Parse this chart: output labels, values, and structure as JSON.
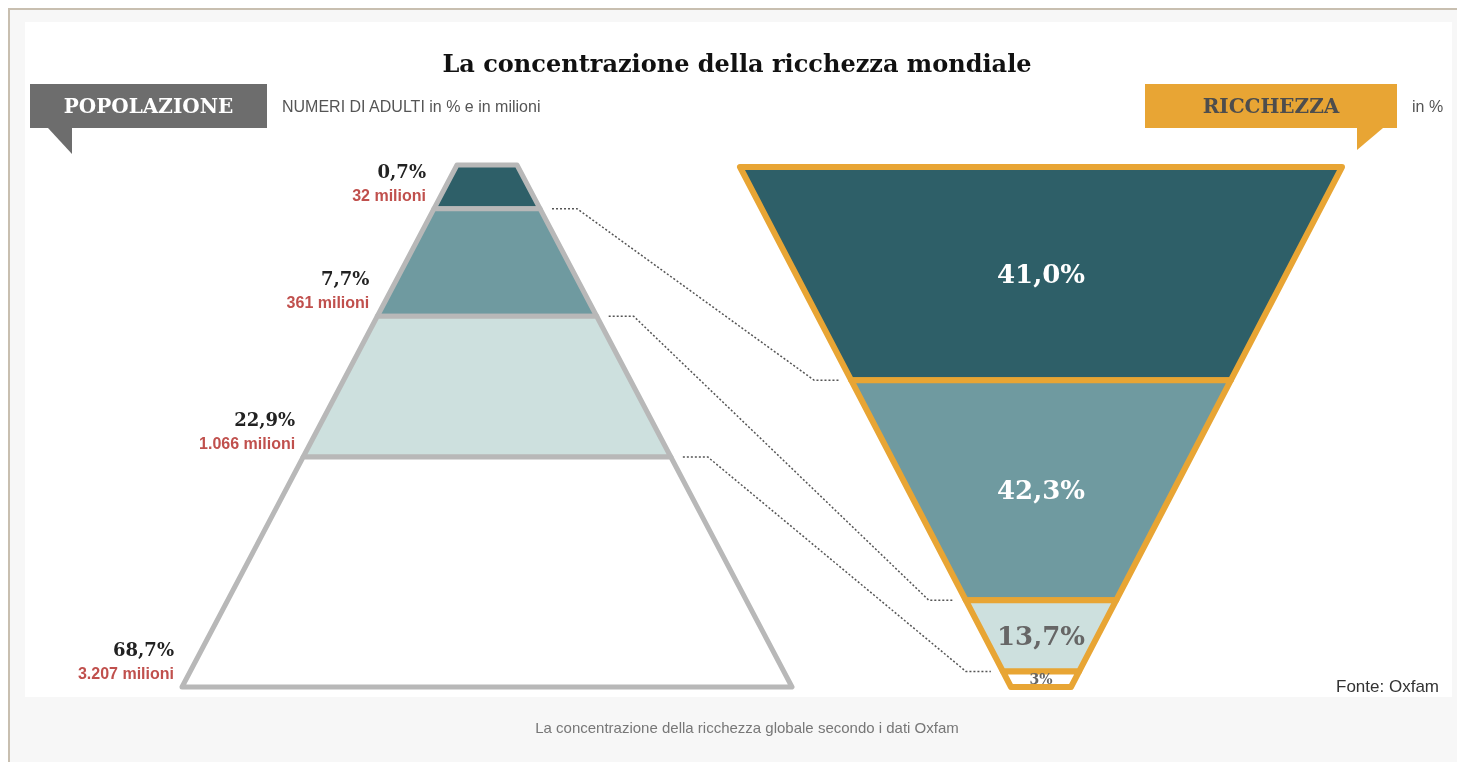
{
  "chart_data": [
    {
      "type": "other",
      "title": "La concentrazione della ricchezza mondiale",
      "ylabel": "POPOLAZIONE",
      "subtitle": "NUMERI DI ADULTI in % e in milioni",
      "colors": [
        "#2e5f68",
        "#6f9aa0",
        "#cde0de",
        "#ffffff"
      ],
      "values": [
        0.7,
        7.7,
        22.9,
        68.7
      ],
      "value_labels": [
        "0,7%\n32 milioni",
        "7,7%\n361 milioni",
        "22,9%\n1.066 milioni",
        "68,7%\n3.207 milioni"
      ]
    },
    {
      "type": "other",
      "ylabel": "RICCHEZZA",
      "subtitle": "in %",
      "colors": [
        "#2e5f68",
        "#6f9aa0",
        "#cde0de",
        "#ffffff"
      ],
      "values": [
        41.0,
        42.3,
        13.7,
        3
      ],
      "value_labels": [
        "41,0%",
        "42,3%",
        "13,7%",
        "3%"
      ],
      "annotations": [
        "Fonte: Oxfam",
        "La concentrazione della ricchezza globale secondo i dati Oxfam"
      ]
    }
  ]
}
